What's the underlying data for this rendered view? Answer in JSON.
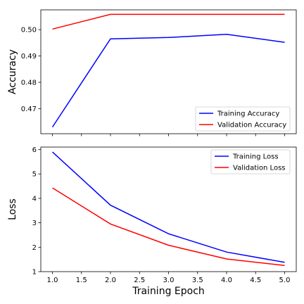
{
  "chart_data": [
    {
      "type": "line",
      "title": "",
      "xlabel": "",
      "ylabel": "Accuracy",
      "xlim": [
        0.8,
        5.2
      ],
      "ylim": [
        0.4605,
        0.5075
      ],
      "yticks": [
        0.47,
        0.48,
        0.49,
        0.5
      ],
      "ytick_labels": [
        "0.47",
        "0.48",
        "0.49",
        "0.50"
      ],
      "legend_position": "lower-right",
      "grid": false,
      "series": [
        {
          "name": "Training Accuracy",
          "color": "#0000ff",
          "x": [
            1,
            2,
            3,
            4,
            5
          ],
          "y": [
            0.463,
            0.4965,
            0.497,
            0.4982,
            0.4952
          ]
        },
        {
          "name": "Validation Accuracy",
          "color": "#ff0000",
          "x": [
            1,
            2,
            3,
            4,
            5
          ],
          "y": [
            0.5002,
            0.5058,
            0.5058,
            0.5058,
            0.5058
          ]
        }
      ]
    },
    {
      "type": "line",
      "title": "",
      "xlabel": "Training Epoch",
      "ylabel": "Loss",
      "xlim": [
        0.8,
        5.2
      ],
      "ylim": [
        1.0,
        6.1
      ],
      "xticks": [
        1.0,
        1.5,
        2.0,
        2.5,
        3.0,
        3.5,
        4.0,
        4.5,
        5.0
      ],
      "xtick_labels": [
        "1.0",
        "1.5",
        "2.0",
        "2.5",
        "3.0",
        "3.5",
        "4.0",
        "4.5",
        "5.0"
      ],
      "yticks": [
        1,
        2,
        3,
        4,
        5,
        6
      ],
      "ytick_labels": [
        "1",
        "2",
        "3",
        "4",
        "5",
        "6"
      ],
      "legend_position": "upper-right",
      "grid": false,
      "series": [
        {
          "name": "Training Loss",
          "color": "#0000ff",
          "x": [
            1,
            2,
            3,
            4,
            5
          ],
          "y": [
            5.9,
            3.72,
            2.55,
            1.8,
            1.38
          ]
        },
        {
          "name": "Validation Loss",
          "color": "#ff0000",
          "x": [
            1,
            2,
            3,
            4,
            5
          ],
          "y": [
            4.43,
            2.95,
            2.08,
            1.52,
            1.25
          ]
        }
      ]
    }
  ]
}
